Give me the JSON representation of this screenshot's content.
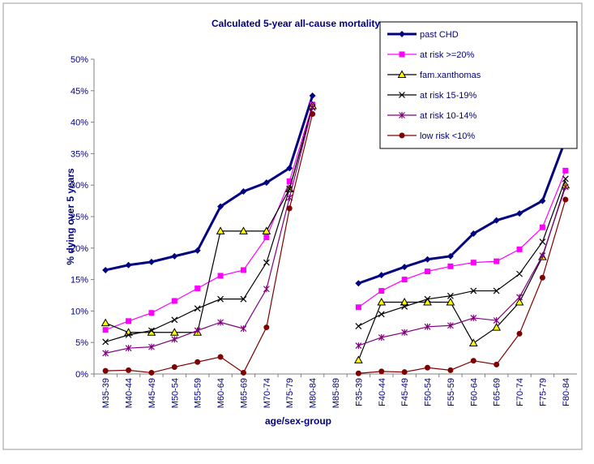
{
  "chart_data": {
    "type": "line",
    "title": "Calculated 5-year all-cause mortality",
    "x_label": "age/sex-group",
    "y_label": "% dying over 5 years",
    "categories": [
      "M35-39",
      "M40-44",
      "M45-49",
      "M50-54",
      "M55-59",
      "M60-64",
      "M65-69",
      "M70-74",
      "M75-79",
      "M80-84",
      "M85-89",
      "F35-39",
      "F40-44",
      "F45-49",
      "F50-54",
      "F55-59",
      "F60-64",
      "F65-69",
      "F70-74",
      "F75-79",
      "F80-84"
    ],
    "ylim": [
      0,
      50
    ],
    "yticks": [
      {
        "value": 0,
        "label": "0%"
      },
      {
        "value": 5,
        "label": "5%"
      },
      {
        "value": 10,
        "label": "10%"
      },
      {
        "value": 15,
        "label": "15%"
      },
      {
        "value": 20,
        "label": "20%"
      },
      {
        "value": 25,
        "label": "25%"
      },
      {
        "value": 30,
        "label": "30%"
      },
      {
        "value": 35,
        "label": "35%"
      },
      {
        "value": 40,
        "label": "40%"
      },
      {
        "value": 45,
        "label": "45%"
      },
      {
        "value": 50,
        "label": "50%"
      }
    ],
    "grid": false,
    "legend": "top-right",
    "series": [
      {
        "name": "past CHD",
        "color": "#000080",
        "marker": "diamond",
        "values": [
          16.5,
          17.3,
          17.8,
          18.7,
          19.6,
          26.6,
          29.0,
          30.4,
          32.7,
          44.2,
          null,
          14.4,
          15.7,
          17.0,
          18.2,
          18.7,
          22.3,
          24.4,
          25.5,
          27.5,
          37.2
        ]
      },
      {
        "name": "at risk >=20%",
        "color": "#ff00ff",
        "marker": "square",
        "values": [
          7.0,
          8.4,
          9.7,
          11.6,
          13.6,
          15.6,
          16.5,
          21.7,
          30.6,
          42.8,
          null,
          10.6,
          13.2,
          15.0,
          16.3,
          17.1,
          17.7,
          17.9,
          19.8,
          23.3,
          32.3
        ]
      },
      {
        "name": "fam.xanthomas",
        "color": "#000000",
        "marker": "triangle",
        "values": [
          8.1,
          6.6,
          6.6,
          6.6,
          6.6,
          22.7,
          22.7,
          22.7,
          29.4,
          42.6,
          null,
          2.2,
          11.4,
          11.4,
          11.4,
          11.4,
          4.9,
          7.4,
          11.4,
          18.6,
          30.0
        ]
      },
      {
        "name": "at risk 15-19%",
        "color": "#000000",
        "marker": "x",
        "values": [
          5.1,
          6.2,
          6.9,
          8.6,
          10.4,
          11.9,
          11.9,
          17.7,
          29.4,
          42.3,
          null,
          7.6,
          9.5,
          10.7,
          11.9,
          12.4,
          13.2,
          13.2,
          15.9,
          21.0,
          31.0
        ]
      },
      {
        "name": "at risk 10-14%",
        "color": "#800080",
        "marker": "star",
        "values": [
          3.3,
          4.1,
          4.3,
          5.5,
          6.9,
          8.2,
          7.2,
          13.5,
          28.0,
          42.4,
          null,
          4.5,
          5.8,
          6.6,
          7.5,
          7.7,
          8.9,
          8.5,
          12.2,
          18.8,
          29.7
        ]
      },
      {
        "name": "low risk <10%",
        "color": "#800000",
        "marker": "circle",
        "values": [
          0.5,
          0.6,
          0.2,
          1.1,
          1.9,
          2.7,
          0.2,
          7.4,
          26.3,
          41.3,
          null,
          0.1,
          0.4,
          0.3,
          1.0,
          0.6,
          2.1,
          1.5,
          6.4,
          15.3,
          27.7
        ]
      }
    ]
  }
}
